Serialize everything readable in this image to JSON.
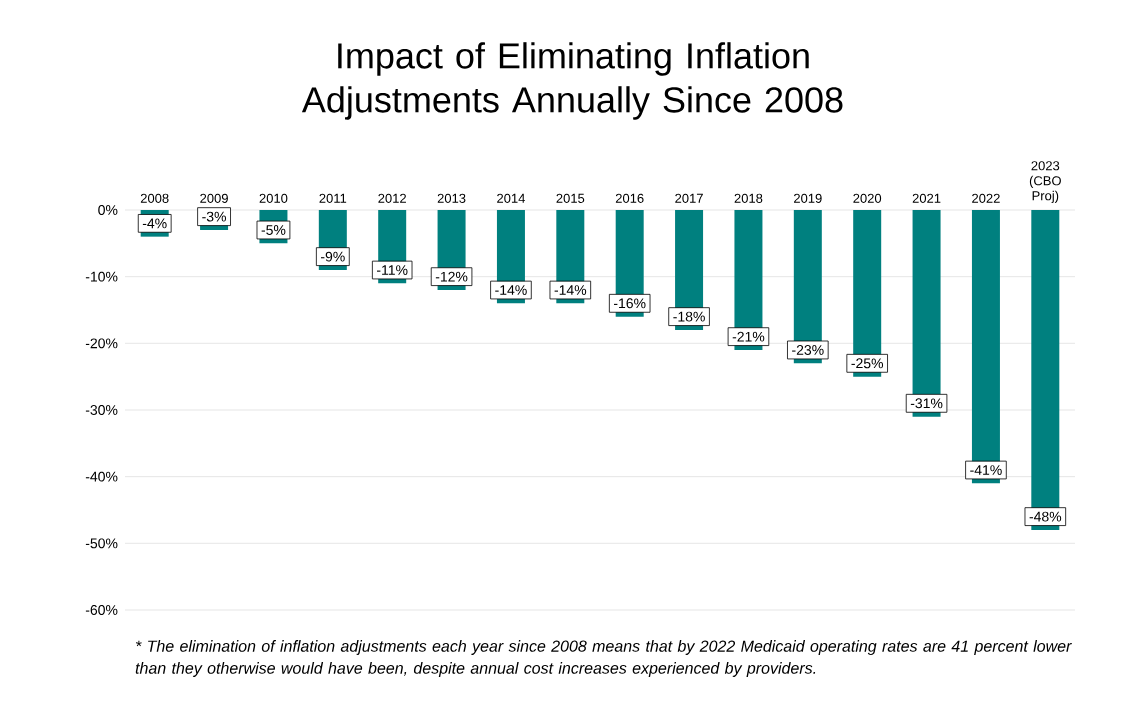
{
  "chart_data": {
    "type": "bar",
    "title": "Impact of Eliminating Inflation Adjustments Annually Since 2008",
    "categories": [
      "2008",
      "2009",
      "2010",
      "2011",
      "2012",
      "2013",
      "2014",
      "2015",
      "2016",
      "2017",
      "2018",
      "2019",
      "2020",
      "2021",
      "2022",
      "2023 (CBO Proj)"
    ],
    "values": [
      -4,
      -3,
      -5,
      -9,
      -11,
      -12,
      -14,
      -14,
      -16,
      -18,
      -21,
      -23,
      -25,
      -31,
      -41,
      -48
    ],
    "value_labels": [
      "-4%",
      "-3%",
      "-5%",
      "-9%",
      "-11%",
      "-12%",
      "-14%",
      "-14%",
      "-16%",
      "-18%",
      "-21%",
      "-23%",
      "-25%",
      "-31%",
      "-41%",
      "-48%"
    ],
    "color": "#00807f",
    "ylim": [
      -60,
      0
    ],
    "yticks": [
      {
        "value": 0,
        "label": "0%"
      },
      {
        "value": -10,
        "label": "-10%"
      },
      {
        "value": -20,
        "label": "-20%"
      },
      {
        "value": -30,
        "label": "-30%"
      },
      {
        "value": -40,
        "label": "-40%"
      },
      {
        "value": -50,
        "label": "-50%"
      },
      {
        "value": -60,
        "label": "-60%"
      }
    ],
    "grid": "y",
    "annotations": [
      "* The elimination of inflation adjustments each year since 2008 means that by 2022 Medicaid operating rates are 41 percent lower than they otherwise would have been, despite annual cost increases experienced by providers."
    ]
  }
}
